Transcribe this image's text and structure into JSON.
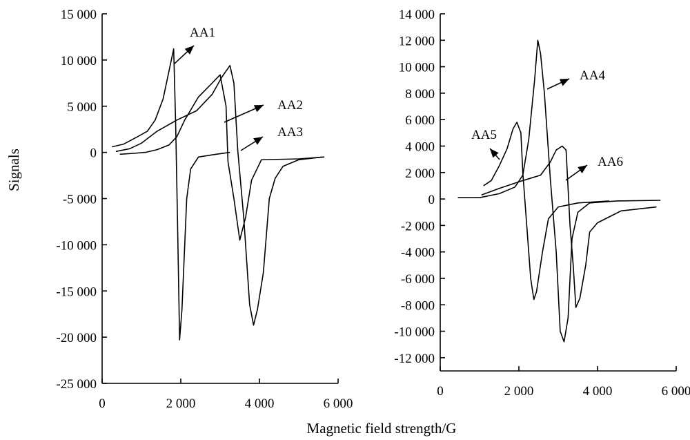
{
  "ylabel": "Signals",
  "xlabel": "Magnetic field strength/G",
  "chart_data": [
    {
      "type": "line",
      "xlim": [
        0,
        6000
      ],
      "ylim": [
        -25000,
        15000
      ],
      "x_ticks": [
        0,
        2000,
        4000,
        6000
      ],
      "x_tick_labels": [
        "0",
        "2 000",
        "4 000",
        "6 000"
      ],
      "y_ticks": [
        15000,
        10000,
        5000,
        0,
        -5000,
        -10000,
        -15000,
        -20000,
        -25000
      ],
      "y_tick_labels": [
        "15 000",
        "10 000",
        "5 000",
        "0",
        "-5 000",
        "-10 000",
        "-15 000",
        "-20 000",
        "-25 000"
      ],
      "series": [
        {
          "name": "AA1",
          "points": [
            [
              250,
              600
            ],
            [
              550,
              900
            ],
            [
              900,
              1700
            ],
            [
              1150,
              2300
            ],
            [
              1350,
              3500
            ],
            [
              1550,
              5800
            ],
            [
              1700,
              8800
            ],
            [
              1820,
              11200
            ],
            [
              1870,
              3000
            ],
            [
              1920,
              -8000
            ],
            [
              1970,
              -20300
            ],
            [
              2030,
              -17000
            ],
            [
              2150,
              -5000
            ],
            [
              2250,
              -1800
            ],
            [
              2450,
              -500
            ],
            [
              2900,
              -200
            ],
            [
              3250,
              0
            ]
          ]
        },
        {
          "name": "AA2",
          "points": [
            [
              350,
              100
            ],
            [
              700,
              400
            ],
            [
              1000,
              1000
            ],
            [
              1400,
              2300
            ],
            [
              1900,
              3500
            ],
            [
              2400,
              4500
            ],
            [
              2800,
              6300
            ],
            [
              3050,
              8200
            ],
            [
              3150,
              8800
            ],
            [
              3250,
              9400
            ],
            [
              3350,
              7500
            ],
            [
              3450,
              200
            ],
            [
              3600,
              -7000
            ],
            [
              3750,
              -16500
            ],
            [
              3850,
              -18700
            ],
            [
              3950,
              -17000
            ],
            [
              4100,
              -13000
            ],
            [
              4250,
              -5000
            ],
            [
              4400,
              -2800
            ],
            [
              4600,
              -1500
            ],
            [
              5000,
              -800
            ],
            [
              5600,
              -500
            ]
          ]
        },
        {
          "name": "AA3",
          "points": [
            [
              450,
              -200
            ],
            [
              800,
              -100
            ],
            [
              1100,
              0
            ],
            [
              1400,
              300
            ],
            [
              1700,
              800
            ],
            [
              1900,
              1700
            ],
            [
              2100,
              3500
            ],
            [
              2450,
              6000
            ],
            [
              2750,
              7300
            ],
            [
              3000,
              8400
            ],
            [
              3150,
              5000
            ],
            [
              3200,
              -1000
            ],
            [
              3350,
              -5000
            ],
            [
              3500,
              -9500
            ],
            [
              3650,
              -7000
            ],
            [
              3800,
              -3000
            ],
            [
              4050,
              -800
            ],
            [
              5000,
              -700
            ],
            [
              5650,
              -500
            ]
          ]
        }
      ],
      "annotations": [
        "AA1",
        "AA2",
        "AA3"
      ]
    },
    {
      "type": "line",
      "xlim": [
        0,
        6000
      ],
      "ylim": [
        -13000,
        14000
      ],
      "x_ticks": [
        0,
        2000,
        4000,
        6000
      ],
      "x_tick_labels": [
        "0",
        "2 000",
        "4 000",
        "6 000"
      ],
      "y_ticks": [
        14000,
        12000,
        10000,
        8000,
        6000,
        4000,
        2000,
        0,
        -2000,
        -4000,
        -6000,
        -8000,
        -10000,
        -12000
      ],
      "y_tick_labels": [
        "14 000",
        "12 000",
        "10 000",
        "8 000",
        "6 000",
        "4 000",
        "2 000",
        "0",
        "-2 000",
        "-4 000",
        "-6 000",
        "-8 000",
        "-10 000",
        "-12 000"
      ],
      "series": [
        {
          "name": "AA4",
          "points": [
            [
              450,
              100
            ],
            [
              1000,
              100
            ],
            [
              1500,
              400
            ],
            [
              1900,
              900
            ],
            [
              2100,
              1800
            ],
            [
              2250,
              4500
            ],
            [
              2400,
              9000
            ],
            [
              2480,
              12000
            ],
            [
              2550,
              11000
            ],
            [
              2650,
              8000
            ],
            [
              2800,
              1500
            ],
            [
              2950,
              -4000
            ],
            [
              3050,
              -10000
            ],
            [
              3150,
              -10800
            ],
            [
              3250,
              -9000
            ],
            [
              3350,
              -3000
            ],
            [
              3500,
              -1000
            ],
            [
              3800,
              -300
            ],
            [
              4500,
              -150
            ],
            [
              5600,
              -100
            ]
          ]
        },
        {
          "name": "AA5",
          "points": [
            [
              1100,
              1000
            ],
            [
              1300,
              1400
            ],
            [
              1500,
              2500
            ],
            [
              1700,
              3800
            ],
            [
              1850,
              5300
            ],
            [
              1950,
              5800
            ],
            [
              2050,
              5000
            ],
            [
              2100,
              2000
            ],
            [
              2200,
              -2000
            ],
            [
              2300,
              -6000
            ],
            [
              2380,
              -7600
            ],
            [
              2450,
              -7000
            ],
            [
              2600,
              -4000
            ],
            [
              2750,
              -1500
            ],
            [
              3000,
              -600
            ],
            [
              3500,
              -300
            ],
            [
              4300,
              -150
            ]
          ]
        },
        {
          "name": "AA6",
          "points": [
            [
              1050,
              300
            ],
            [
              1500,
              800
            ],
            [
              2000,
              1300
            ],
            [
              2550,
              1800
            ],
            [
              2800,
              2800
            ],
            [
              2950,
              3700
            ],
            [
              3100,
              4000
            ],
            [
              3200,
              3700
            ],
            [
              3300,
              -2000
            ],
            [
              3380,
              -5000
            ],
            [
              3450,
              -8200
            ],
            [
              3550,
              -7500
            ],
            [
              3700,
              -5000
            ],
            [
              3800,
              -2500
            ],
            [
              4000,
              -1800
            ],
            [
              4600,
              -900
            ],
            [
              5500,
              -600
            ]
          ]
        }
      ],
      "annotations": [
        "AA4",
        "AA5",
        "AA6"
      ]
    }
  ]
}
